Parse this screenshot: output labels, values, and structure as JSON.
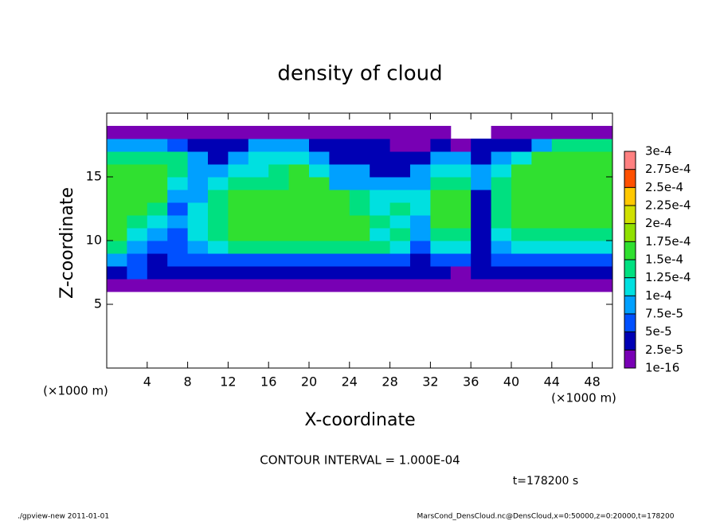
{
  "chart_data": {
    "type": "heatmap",
    "title": "density of cloud",
    "xlabel": "X-coordinate",
    "ylabel": "Z-coordinate",
    "x_unit": "(×1000 m)",
    "y_unit": "(×1000 m)",
    "xlim": [
      0,
      50
    ],
    "ylim": [
      0,
      20
    ],
    "xticks": [
      4,
      8,
      12,
      16,
      20,
      24,
      28,
      32,
      36,
      40,
      44,
      48
    ],
    "yticks": [
      5,
      10,
      15
    ],
    "x_edges": [
      0,
      2,
      4,
      6,
      8,
      10,
      12,
      14,
      16,
      18,
      20,
      22,
      24,
      26,
      28,
      30,
      32,
      34,
      36,
      38,
      40,
      42,
      44,
      46,
      48,
      50
    ],
    "z_edges": [
      6,
      7,
      8,
      9,
      10,
      11,
      12,
      13,
      14,
      15,
      16,
      17,
      18,
      19
    ],
    "values": [
      [
        1e-05,
        1e-05,
        1e-05,
        1e-05,
        1e-05,
        1e-05,
        1e-05,
        1e-05,
        1e-05,
        1e-05,
        1e-05,
        1e-05,
        1e-05,
        1e-05,
        1e-05,
        1e-05,
        1e-05,
        1e-05,
        1e-05,
        1e-05,
        1e-05,
        1e-05,
        1e-05,
        1e-05,
        1e-05
      ],
      [
        3.5e-05,
        6e-05,
        3.5e-05,
        3.5e-05,
        3.5e-05,
        3.5e-05,
        3.5e-05,
        3.5e-05,
        3.5e-05,
        3.5e-05,
        3.5e-05,
        3.5e-05,
        3.5e-05,
        3.5e-05,
        3.5e-05,
        3.5e-05,
        3.5e-05,
        1e-05,
        3.5e-05,
        3.5e-05,
        3.5e-05,
        3.5e-05,
        3.5e-05,
        3.5e-05,
        3.5e-05
      ],
      [
        8.5e-05,
        6e-05,
        3.5e-05,
        6e-05,
        6e-05,
        6e-05,
        6e-05,
        6e-05,
        6e-05,
        6e-05,
        6e-05,
        6e-05,
        6e-05,
        6e-05,
        6e-05,
        3.5e-05,
        6e-05,
        6e-05,
        3.5e-05,
        6e-05,
        6e-05,
        6e-05,
        6e-05,
        6e-05,
        6e-05
      ],
      [
        0.000135,
        8.5e-05,
        6e-05,
        6e-05,
        8.5e-05,
        0.00011,
        0.000135,
        0.000135,
        0.000135,
        0.000135,
        0.000135,
        0.000135,
        0.000135,
        0.000135,
        0.00011,
        6e-05,
        0.00011,
        0.00011,
        3.5e-05,
        8.5e-05,
        0.00011,
        0.00011,
        0.00011,
        0.00011,
        0.00011
      ],
      [
        0.00016,
        0.00011,
        8.5e-05,
        6e-05,
        0.00011,
        0.000135,
        0.00016,
        0.00016,
        0.00016,
        0.00016,
        0.00016,
        0.00016,
        0.00016,
        0.00011,
        0.000135,
        8.5e-05,
        0.000135,
        0.000135,
        3.5e-05,
        0.00011,
        0.000135,
        0.000135,
        0.000135,
        0.000135,
        0.000135
      ],
      [
        0.00016,
        0.000135,
        0.00011,
        8.5e-05,
        0.00011,
        0.000135,
        0.00016,
        0.00016,
        0.00016,
        0.00016,
        0.00016,
        0.00016,
        0.00016,
        0.000135,
        0.00011,
        8.5e-05,
        0.00016,
        0.00016,
        3.5e-05,
        0.000135,
        0.00016,
        0.00016,
        0.00016,
        0.00016,
        0.00016
      ],
      [
        0.00016,
        0.00016,
        0.000135,
        6e-05,
        0.00011,
        0.000135,
        0.00016,
        0.00016,
        0.00016,
        0.00016,
        0.00016,
        0.00016,
        0.000135,
        0.00011,
        0.000135,
        0.00011,
        0.00016,
        0.00016,
        3.5e-05,
        0.000135,
        0.00016,
        0.00016,
        0.00016,
        0.00016,
        0.00016
      ],
      [
        0.00016,
        0.00016,
        0.00016,
        8.5e-05,
        8.5e-05,
        0.000135,
        0.00016,
        0.00016,
        0.00016,
        0.00016,
        0.00016,
        0.00016,
        0.000135,
        0.00011,
        0.00011,
        0.00011,
        0.00016,
        0.00016,
        3.5e-05,
        0.000135,
        0.00016,
        0.00016,
        0.00016,
        0.00016,
        0.00016
      ],
      [
        0.00016,
        0.00016,
        0.00016,
        0.00011,
        8.5e-05,
        0.00011,
        0.000135,
        0.000135,
        0.000135,
        0.00016,
        0.00016,
        8.5e-05,
        8.5e-05,
        8.5e-05,
        8.5e-05,
        8.5e-05,
        0.000135,
        0.000135,
        8.5e-05,
        0.000135,
        0.00016,
        0.00016,
        0.00016,
        0.00016,
        0.00016
      ],
      [
        0.00016,
        0.00016,
        0.00016,
        0.000135,
        8.5e-05,
        8.5e-05,
        0.00011,
        0.00011,
        0.000135,
        0.00016,
        0.00011,
        8.5e-05,
        8.5e-05,
        3.5e-05,
        3.5e-05,
        8.5e-05,
        0.00011,
        0.00011,
        8.5e-05,
        0.00011,
        0.00016,
        0.00016,
        0.00016,
        0.00016,
        0.00016
      ],
      [
        0.000135,
        0.000135,
        0.000135,
        0.000135,
        8.5e-05,
        3.5e-05,
        8.5e-05,
        0.00011,
        0.00011,
        0.00011,
        8.5e-05,
        3.5e-05,
        3.5e-05,
        3.5e-05,
        3.5e-05,
        3.5e-05,
        8.5e-05,
        8.5e-05,
        3.5e-05,
        8.5e-05,
        0.00011,
        0.00016,
        0.00016,
        0.00016,
        0.00016
      ],
      [
        8.5e-05,
        8.5e-05,
        8.5e-05,
        6e-05,
        3.5e-05,
        3.5e-05,
        3.5e-05,
        8.5e-05,
        8.5e-05,
        8.5e-05,
        3.5e-05,
        3.5e-05,
        3.5e-05,
        3.5e-05,
        1e-05,
        1e-05,
        3.5e-05,
        1e-05,
        3.5e-05,
        3.5e-05,
        3.5e-05,
        8.5e-05,
        0.000135,
        0.000135,
        0.000135
      ],
      [
        1e-05,
        1e-05,
        1e-05,
        1e-05,
        1e-05,
        1e-05,
        1e-05,
        1e-05,
        1e-05,
        1e-05,
        1e-05,
        1e-05,
        1e-05,
        1e-05,
        1e-05,
        1e-05,
        1e-05,
        null,
        null,
        1e-05,
        1e-05,
        1e-05,
        1e-05,
        1e-05,
        1e-05
      ]
    ],
    "colorbar": {
      "levels": [
        {
          "value": 1e-16,
          "label": "1e-16"
        },
        {
          "value": 2.5e-05,
          "label": "2.5e-5"
        },
        {
          "value": 5e-05,
          "label": "5e-5"
        },
        {
          "value": 7.5e-05,
          "label": "7.5e-5"
        },
        {
          "value": 0.0001,
          "label": "1e-4"
        },
        {
          "value": 0.000125,
          "label": "1.25e-4"
        },
        {
          "value": 0.00015,
          "label": "1.5e-4"
        },
        {
          "value": 0.000175,
          "label": "1.75e-4"
        },
        {
          "value": 0.0002,
          "label": "2e-4"
        },
        {
          "value": 0.000225,
          "label": "2.25e-4"
        },
        {
          "value": 0.00025,
          "label": "2.5e-4"
        },
        {
          "value": 0.000275,
          "label": "2.75e-4"
        },
        {
          "value": 0.0003,
          "label": "3e-4"
        }
      ],
      "colors": [
        "#7800b4",
        "#0000b4",
        "#0050ff",
        "#00a0ff",
        "#00e0e0",
        "#00e080",
        "#30e030",
        "#90e000",
        "#d0e000",
        "#ffc800",
        "#ff5000",
        "#ff8080"
      ]
    },
    "contour_interval": "CONTOUR INTERVAL = 1.000E-04",
    "time_label": "t=178200 s"
  },
  "footer": {
    "left": "./gpview-new   2011-01-01",
    "right": "MarsCond_DensCloud.nc@DensCloud,x=0:50000,z=0:20000,t=178200"
  }
}
